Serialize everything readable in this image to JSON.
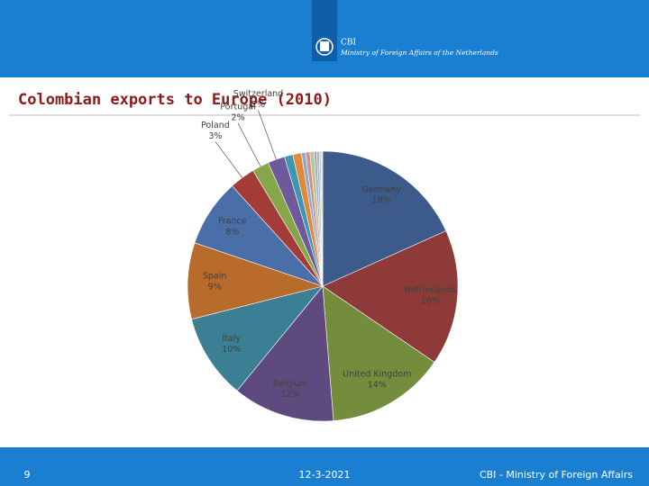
{
  "header": {
    "org": "CBI",
    "ministry": "Ministry of Foreign Affairs of the Netherlands"
  },
  "chart_data": {
    "type": "pie",
    "title": "Colombian exports to Europe (2010)",
    "categories": [
      "Germany",
      "Netherlands",
      "United Kingdom",
      "Belgium",
      "Italy",
      "Spain",
      "France",
      "Poland",
      "Portugal",
      "Switzerland",
      null,
      null,
      null,
      null,
      null,
      null,
      null,
      null,
      null
    ],
    "values": [
      18,
      16,
      14,
      12,
      10,
      9,
      8,
      3,
      2,
      2,
      1,
      1,
      0.5,
      0.5,
      0.5,
      0.3,
      0.3,
      0.2,
      0.2
    ],
    "value_labels": [
      "18%",
      "16%",
      "14%",
      "12%",
      "10%",
      "9%",
      "8%",
      "3%",
      "2%",
      "2%",
      null,
      null,
      null,
      null,
      null,
      null,
      null,
      null,
      null
    ],
    "colors": [
      "#3c5a8a",
      "#8e3a38",
      "#748d3c",
      "#5e4a7e",
      "#3a7f93",
      "#b96b2c",
      "#4a6fa8",
      "#a33b37",
      "#87a64a",
      "#6e5a9b",
      "#3e96b0",
      "#e2883a",
      "#8fa8d0",
      "#d08f8c",
      "#b5c98f",
      "#a99bc4",
      "#8fc3d3",
      "#f0b98a",
      "#c8d4e8"
    ]
  },
  "footer": {
    "page": "9",
    "date": "12-3-2021",
    "org": "CBI - Ministry of Foreign Affairs"
  }
}
